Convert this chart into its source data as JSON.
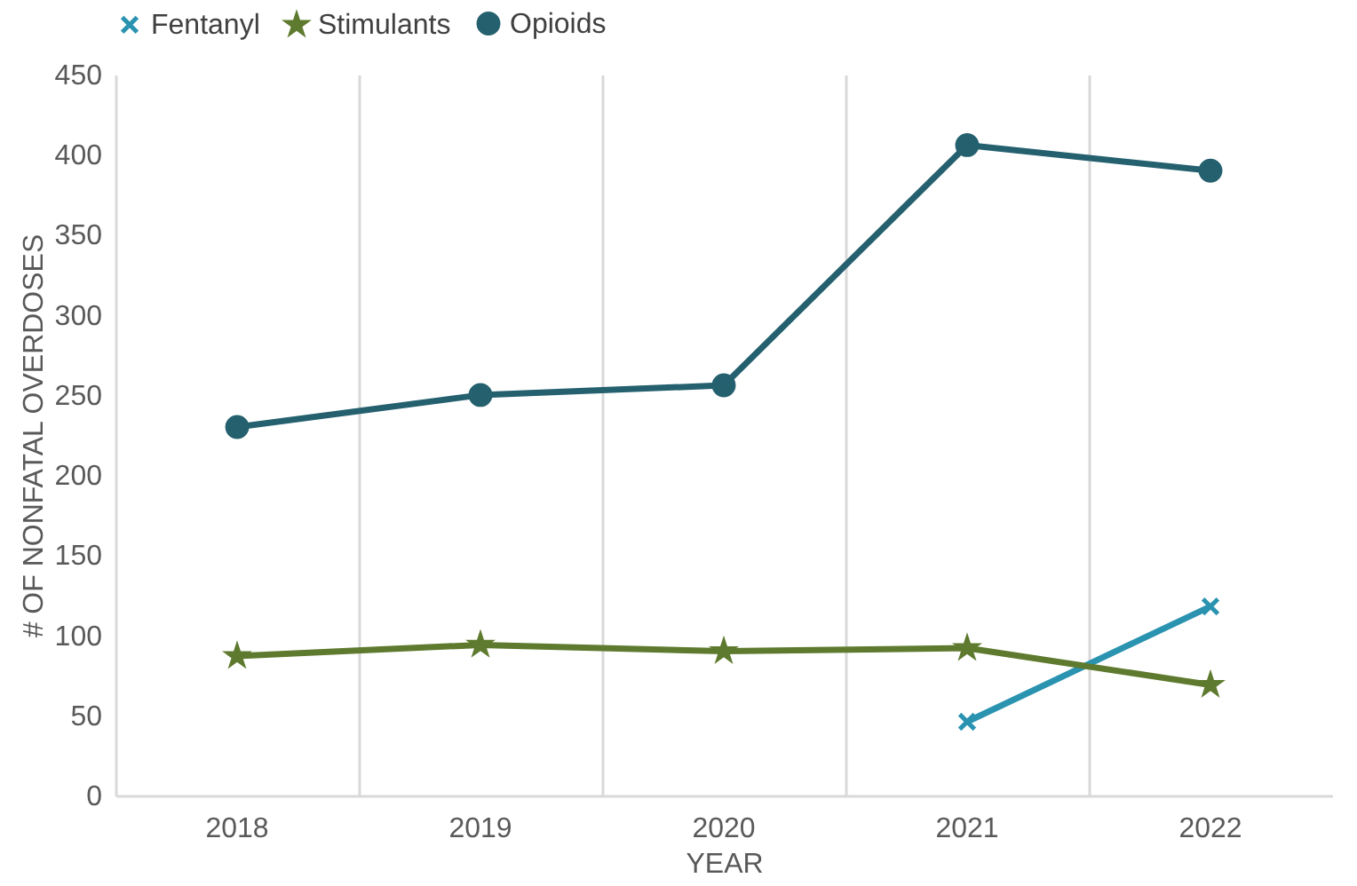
{
  "chart_data": {
    "type": "line",
    "xlabel": "YEAR",
    "ylabel": "# OF NONFATAL OVERDOSES",
    "categories": [
      "2018",
      "2019",
      "2020",
      "2021",
      "2022"
    ],
    "series": [
      {
        "name": "Fentanyl",
        "color": "#2a93b0",
        "marker": "cross",
        "values": [
          null,
          null,
          null,
          46,
          118
        ]
      },
      {
        "name": "Stimulants",
        "color": "#5e7a2e",
        "marker": "star",
        "values": [
          87,
          94,
          90,
          92,
          69
        ]
      },
      {
        "name": "Opioids",
        "color": "#24606e",
        "marker": "circle",
        "values": [
          230,
          250,
          256,
          406,
          390
        ]
      }
    ],
    "ylim": [
      0,
      450
    ],
    "yticks": [
      0,
      50,
      100,
      150,
      200,
      250,
      300,
      350,
      400,
      450
    ],
    "grid": "x",
    "legend": "top",
    "line_style": "solid"
  }
}
